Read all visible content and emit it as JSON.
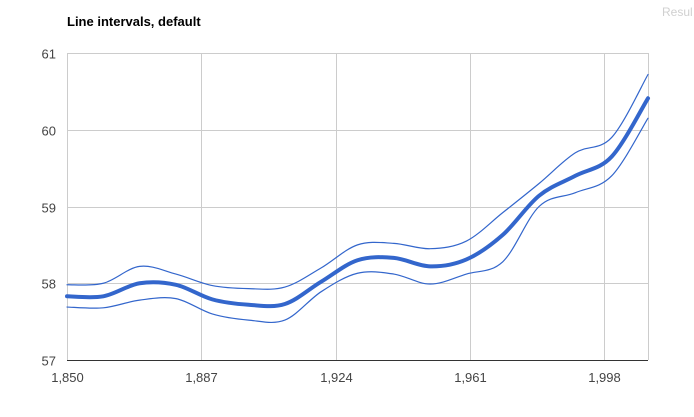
{
  "title": "Line intervals, default",
  "corner_label": "Resul",
  "chart_data": {
    "type": "line",
    "title": "Line intervals, default",
    "xlabel": "",
    "ylabel": "",
    "xlim": [
      1850,
      2010
    ],
    "ylim": [
      57,
      61
    ],
    "x_ticks": [
      1850,
      1887,
      1924,
      1961,
      1998
    ],
    "x_tick_labels": [
      "1,850",
      "1,887",
      "1,924",
      "1,961",
      "1,998"
    ],
    "y_ticks": [
      57,
      58,
      59,
      60,
      61
    ],
    "y_tick_labels": [
      "57",
      "58",
      "59",
      "60",
      "61"
    ],
    "grid": true,
    "legend": "none",
    "colors": {
      "line": "#3366cc",
      "grid": "#cccccc",
      "baseline": "#333333"
    },
    "x": [
      1850,
      1860,
      1870,
      1880,
      1890,
      1900,
      1910,
      1920,
      1930,
      1940,
      1950,
      1960,
      1970,
      1980,
      1990,
      2000,
      2010
    ],
    "series": [
      {
        "role": "data",
        "values": [
          57.83,
          57.83,
          58.0,
          57.98,
          57.79,
          57.72,
          57.73,
          58.02,
          58.3,
          58.33,
          58.22,
          58.31,
          58.63,
          59.14,
          59.4,
          59.65,
          60.41
        ]
      },
      {
        "role": "interval",
        "values": [
          57.98,
          58.0,
          58.22,
          58.12,
          57.97,
          57.93,
          57.95,
          58.2,
          58.5,
          58.52,
          58.45,
          58.55,
          58.92,
          59.3,
          59.7,
          59.9,
          60.72
        ]
      },
      {
        "role": "interval",
        "values": [
          57.69,
          57.68,
          57.78,
          57.8,
          57.6,
          57.52,
          57.52,
          57.89,
          58.13,
          58.12,
          57.99,
          58.12,
          58.28,
          59.0,
          59.18,
          59.4,
          60.15
        ]
      }
    ]
  }
}
